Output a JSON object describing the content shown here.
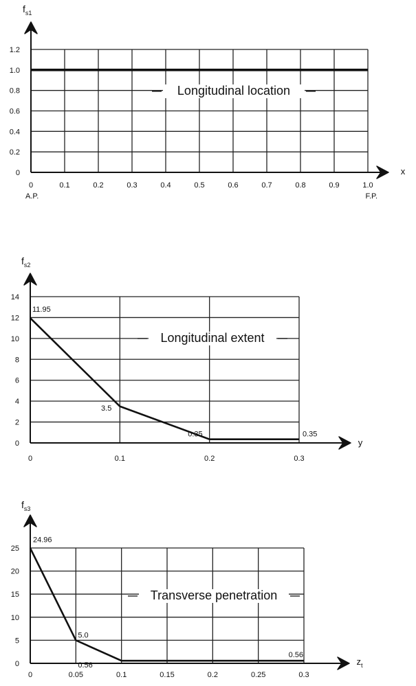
{
  "chart_data": [
    {
      "type": "line",
      "ylabel_main": "f",
      "ylabel_sub": "s1",
      "xlabel": "x",
      "title": "Longitudinal location",
      "x": [
        0,
        1.0
      ],
      "y": [
        1.0,
        1.0
      ],
      "xlim": [
        0,
        1.0
      ],
      "ylim": [
        0,
        1.2
      ],
      "grid": true,
      "x_ticks": [
        0,
        0.1,
        0.2,
        0.3,
        0.4,
        0.5,
        0.6,
        0.7,
        0.8,
        0.9,
        1.0
      ],
      "x_tick_labels": [
        "0",
        "0.1",
        "0.2",
        "0.3",
        "0.4",
        "0.5",
        "0.6",
        "0.7",
        "0.8",
        "0.9",
        "1.0"
      ],
      "y_ticks": [
        0,
        0.2,
        0.4,
        0.6,
        0.8,
        1.0,
        1.2
      ],
      "y_tick_labels": [
        "0",
        "0.2",
        "0.4",
        "0.6",
        "0.8",
        "1.0",
        "1.2"
      ],
      "x_annotations": [
        {
          "x": 0,
          "text": "A.P."
        },
        {
          "x": 1.0,
          "text": "F.P."
        }
      ],
      "data_labels": []
    },
    {
      "type": "line",
      "ylabel_main": "f",
      "ylabel_sub": "s2",
      "xlabel": "y",
      "title": "Longitudinal extent",
      "x": [
        0,
        0.1,
        0.2,
        0.3
      ],
      "y": [
        11.95,
        3.5,
        0.35,
        0.35
      ],
      "xlim": [
        0,
        0.3
      ],
      "ylim": [
        0,
        14
      ],
      "grid": true,
      "x_ticks": [
        0,
        0.1,
        0.2,
        0.3
      ],
      "x_tick_labels": [
        "0",
        "0.1",
        "0.2",
        "0.3"
      ],
      "y_ticks": [
        0,
        2,
        4,
        6,
        8,
        10,
        12,
        14
      ],
      "y_tick_labels": [
        "0",
        "2",
        "4",
        "6",
        "8",
        "10",
        "12",
        "14"
      ],
      "x_annotations": [],
      "data_labels": [
        {
          "x": 0,
          "y": 11.95,
          "text": "11.95"
        },
        {
          "x": 0.1,
          "y": 3.5,
          "text": "3.5"
        },
        {
          "x": 0.2,
          "y": 0.35,
          "text": "0.35"
        },
        {
          "x": 0.3,
          "y": 0.35,
          "text": "0.35"
        }
      ]
    },
    {
      "type": "line",
      "ylabel_main": "f",
      "ylabel_sub": "s3",
      "xlabel": "z",
      "xlabel_sub": "t",
      "title": "Transverse  penetration",
      "x": [
        0,
        0.05,
        0.1,
        0.3
      ],
      "y": [
        24.96,
        5.0,
        0.56,
        0.56
      ],
      "xlim": [
        0,
        0.3
      ],
      "ylim": [
        0,
        25
      ],
      "grid": true,
      "x_ticks": [
        0,
        0.05,
        0.1,
        0.15,
        0.2,
        0.25,
        0.3
      ],
      "x_tick_labels": [
        "0",
        "0.05",
        "0.1",
        "0.15",
        "0.2",
        "0.25",
        "0.3"
      ],
      "y_ticks": [
        0,
        5,
        10,
        15,
        20,
        25
      ],
      "y_tick_labels": [
        "0",
        "5",
        "10",
        "15",
        "20",
        "25"
      ],
      "x_annotations": [],
      "data_labels": [
        {
          "x": 0,
          "y": 24.96,
          "text": "24.96"
        },
        {
          "x": 0.05,
          "y": 5.0,
          "text": "5.0"
        },
        {
          "x": 0.05,
          "y": 0.56,
          "text": "0.56"
        },
        {
          "x": 0.3,
          "y": 0.56,
          "text": "0.56"
        }
      ]
    }
  ]
}
